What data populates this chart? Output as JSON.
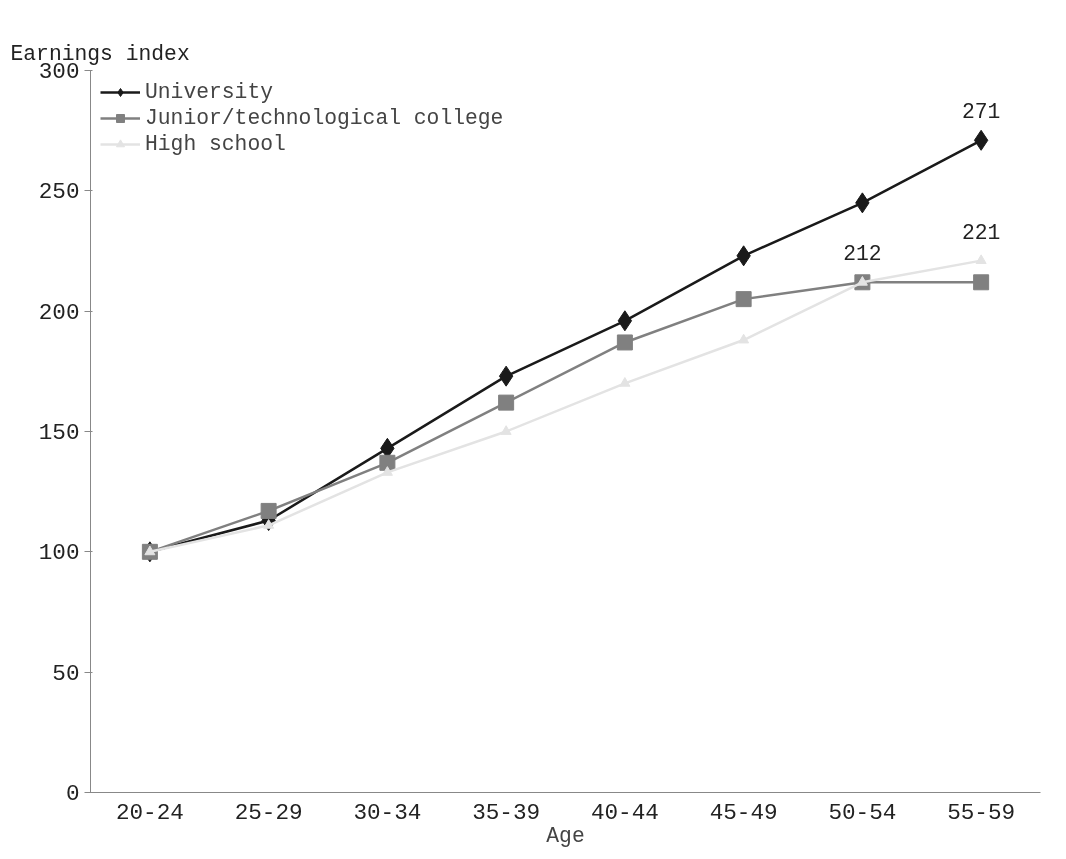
{
  "chart_data": {
    "type": "line",
    "ylabel": "Earnings index",
    "xlabel": "Age",
    "categories": [
      "20-24",
      "25-29",
      "30-34",
      "35-39",
      "40-44",
      "45-49",
      "50-54",
      "55-59"
    ],
    "series": [
      {
        "name": "University",
        "color": "#1a1a1a",
        "marker": "diamond",
        "values": [
          100,
          113,
          143,
          173,
          196,
          223,
          245,
          271
        ],
        "value_labels": [
          null,
          null,
          null,
          null,
          null,
          null,
          null,
          "271"
        ]
      },
      {
        "name": "Junior/technological college",
        "color": "#808080",
        "marker": "square",
        "values": [
          100,
          117,
          137,
          162,
          187,
          205,
          212,
          212
        ],
        "value_labels": [
          null,
          null,
          null,
          null,
          null,
          null,
          "212",
          null
        ]
      },
      {
        "name": "High school",
        "color": "#e3e3e3",
        "marker": "triangle",
        "values": [
          100,
          111,
          133,
          150,
          170,
          188,
          212,
          221
        ],
        "value_labels": [
          null,
          null,
          null,
          null,
          null,
          null,
          null,
          "221"
        ]
      }
    ],
    "ylim": [
      0,
      300
    ],
    "yticks": [
      0,
      50,
      100,
      150,
      200,
      250,
      300
    ],
    "grid": false,
    "legend": "top left"
  }
}
